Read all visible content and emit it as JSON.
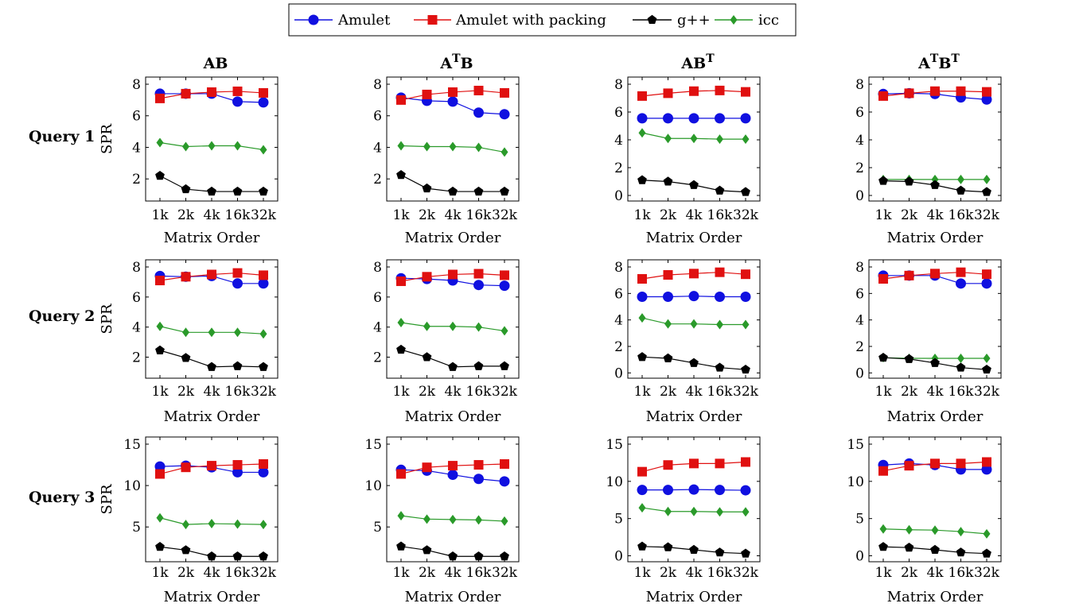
{
  "legend": {
    "items": [
      {
        "label": "Amulet",
        "color": "#1010e0",
        "marker": "circle"
      },
      {
        "label": "Amulet with packing",
        "color": "#e01010",
        "marker": "square"
      },
      {
        "label": "g++",
        "color": "#000000",
        "marker": "pentagon"
      },
      {
        "label": "icc",
        "color": "#2a9a2a",
        "marker": "diamond"
      }
    ]
  },
  "columns": [
    {
      "base": "AB",
      "parts": [
        {
          "t": "AB",
          "sup": false
        }
      ]
    },
    {
      "base": "ATB",
      "parts": [
        {
          "t": "A",
          "sup": false
        },
        {
          "t": "T",
          "sup": true
        },
        {
          "t": "B",
          "sup": false
        }
      ]
    },
    {
      "base": "ABT",
      "parts": [
        {
          "t": "AB",
          "sup": false
        },
        {
          "t": "T",
          "sup": true
        }
      ]
    },
    {
      "base": "ATBT",
      "parts": [
        {
          "t": "A",
          "sup": false
        },
        {
          "t": "T",
          "sup": true
        },
        {
          "t": "B",
          "sup": false
        },
        {
          "t": "T",
          "sup": true
        }
      ]
    }
  ],
  "rows": [
    "Query 1",
    "Query 2",
    "Query 3"
  ],
  "ylabel": "SPR",
  "xlabel": "Matrix Order",
  "chart_data": [
    {
      "type": "line",
      "query": "Query 1",
      "panel": "AB",
      "categories": [
        "1k",
        "2k",
        "4k",
        "16k",
        "32k"
      ],
      "ylim": [
        0.6,
        8
      ],
      "yticks": [
        2,
        4,
        6,
        8
      ],
      "series": [
        {
          "name": "Amulet",
          "values": [
            7.4,
            7.4,
            7.4,
            6.9,
            6.85
          ]
        },
        {
          "name": "Amulet with packing",
          "values": [
            7.1,
            7.4,
            7.5,
            7.55,
            7.45
          ]
        },
        {
          "name": "g++",
          "values": [
            2.2,
            1.35,
            1.2,
            1.2,
            1.2
          ]
        },
        {
          "name": "icc",
          "values": [
            4.3,
            4.05,
            4.1,
            4.1,
            3.85
          ]
        }
      ]
    },
    {
      "type": "line",
      "query": "Query 1",
      "panel": "ATB",
      "categories": [
        "1k",
        "2k",
        "4k",
        "16k",
        "32k"
      ],
      "ylim": [
        0.6,
        8
      ],
      "yticks": [
        2,
        4,
        6,
        8
      ],
      "series": [
        {
          "name": "Amulet",
          "values": [
            7.15,
            6.95,
            6.9,
            6.2,
            6.1
          ]
        },
        {
          "name": "Amulet with packing",
          "values": [
            7.0,
            7.35,
            7.5,
            7.6,
            7.45
          ]
        },
        {
          "name": "g++",
          "values": [
            2.25,
            1.4,
            1.2,
            1.2,
            1.2
          ]
        },
        {
          "name": "icc",
          "values": [
            4.1,
            4.05,
            4.05,
            4.0,
            3.7
          ]
        }
      ]
    },
    {
      "type": "line",
      "query": "Query 1",
      "panel": "ABT",
      "categories": [
        "1k",
        "2k",
        "4k",
        "16k",
        "32k"
      ],
      "ylim": [
        -0.4,
        8
      ],
      "yticks": [
        0,
        2,
        4,
        6,
        8
      ],
      "series": [
        {
          "name": "Amulet",
          "values": [
            5.55,
            5.55,
            5.55,
            5.55,
            5.55
          ]
        },
        {
          "name": "Amulet with packing",
          "values": [
            7.15,
            7.35,
            7.5,
            7.55,
            7.45
          ]
        },
        {
          "name": "g++",
          "values": [
            1.1,
            1.0,
            0.75,
            0.35,
            0.25
          ]
        },
        {
          "name": "icc",
          "values": [
            4.5,
            4.1,
            4.1,
            4.05,
            4.05
          ]
        }
      ]
    },
    {
      "type": "line",
      "query": "Query 1",
      "panel": "ATBT",
      "categories": [
        "1k",
        "2k",
        "4k",
        "16k",
        "32k"
      ],
      "ylim": [
        -0.4,
        8
      ],
      "yticks": [
        0,
        2,
        4,
        6,
        8
      ],
      "series": [
        {
          "name": "Amulet",
          "values": [
            7.3,
            7.35,
            7.3,
            7.05,
            6.9
          ]
        },
        {
          "name": "Amulet with packing",
          "values": [
            7.15,
            7.35,
            7.5,
            7.5,
            7.45
          ]
        },
        {
          "name": "g++",
          "values": [
            1.05,
            1.0,
            0.75,
            0.35,
            0.25
          ]
        },
        {
          "name": "icc",
          "values": [
            1.15,
            1.15,
            1.15,
            1.15,
            1.15
          ]
        }
      ]
    },
    {
      "type": "line",
      "query": "Query 2",
      "panel": "AB",
      "categories": [
        "1k",
        "2k",
        "4k",
        "16k",
        "32k"
      ],
      "ylim": [
        0.6,
        8
      ],
      "yticks": [
        2,
        4,
        6,
        8
      ],
      "series": [
        {
          "name": "Amulet",
          "values": [
            7.4,
            7.35,
            7.4,
            6.9,
            6.9
          ]
        },
        {
          "name": "Amulet with packing",
          "values": [
            7.1,
            7.35,
            7.5,
            7.6,
            7.45
          ]
        },
        {
          "name": "g++",
          "values": [
            2.45,
            1.95,
            1.35,
            1.4,
            1.35
          ]
        },
        {
          "name": "icc",
          "values": [
            4.05,
            3.65,
            3.65,
            3.65,
            3.55
          ]
        }
      ]
    },
    {
      "type": "line",
      "query": "Query 2",
      "panel": "ATB",
      "categories": [
        "1k",
        "2k",
        "4k",
        "16k",
        "32k"
      ],
      "ylim": [
        0.6,
        8
      ],
      "yticks": [
        2,
        4,
        6,
        8
      ],
      "series": [
        {
          "name": "Amulet",
          "values": [
            7.25,
            7.2,
            7.1,
            6.8,
            6.75
          ]
        },
        {
          "name": "Amulet with packing",
          "values": [
            7.05,
            7.35,
            7.5,
            7.55,
            7.45
          ]
        },
        {
          "name": "g++",
          "values": [
            2.5,
            2.0,
            1.35,
            1.4,
            1.4
          ]
        },
        {
          "name": "icc",
          "values": [
            4.3,
            4.05,
            4.05,
            4.0,
            3.75
          ]
        }
      ]
    },
    {
      "type": "line",
      "query": "Query 2",
      "panel": "ABT",
      "categories": [
        "1k",
        "2k",
        "4k",
        "16k",
        "32k"
      ],
      "ylim": [
        -0.4,
        8
      ],
      "yticks": [
        0,
        2,
        4,
        6,
        8
      ],
      "series": [
        {
          "name": "Amulet",
          "values": [
            5.75,
            5.75,
            5.8,
            5.75,
            5.75
          ]
        },
        {
          "name": "Amulet with packing",
          "values": [
            7.1,
            7.4,
            7.5,
            7.6,
            7.45
          ]
        },
        {
          "name": "g++",
          "values": [
            1.2,
            1.1,
            0.75,
            0.4,
            0.25
          ]
        },
        {
          "name": "icc",
          "values": [
            4.15,
            3.7,
            3.7,
            3.65,
            3.65
          ]
        }
      ]
    },
    {
      "type": "line",
      "query": "Query 2",
      "panel": "ATBT",
      "categories": [
        "1k",
        "2k",
        "4k",
        "16k",
        "32k"
      ],
      "ylim": [
        -0.4,
        8
      ],
      "yticks": [
        0,
        2,
        4,
        6,
        8
      ],
      "series": [
        {
          "name": "Amulet",
          "values": [
            7.35,
            7.35,
            7.35,
            6.75,
            6.75
          ]
        },
        {
          "name": "Amulet with packing",
          "values": [
            7.1,
            7.35,
            7.5,
            7.6,
            7.45
          ]
        },
        {
          "name": "g++",
          "values": [
            1.15,
            1.05,
            0.75,
            0.4,
            0.25
          ]
        },
        {
          "name": "icc",
          "values": [
            1.15,
            1.1,
            1.1,
            1.1,
            1.1
          ]
        }
      ]
    },
    {
      "type": "line",
      "query": "Query 3",
      "panel": "AB",
      "categories": [
        "1k",
        "2k",
        "4k",
        "16k",
        "32k"
      ],
      "ylim": [
        0.8,
        15
      ],
      "yticks": [
        5,
        10,
        15
      ],
      "series": [
        {
          "name": "Amulet",
          "values": [
            12.3,
            12.4,
            12.2,
            11.6,
            11.6
          ]
        },
        {
          "name": "Amulet with packing",
          "values": [
            11.4,
            12.2,
            12.4,
            12.5,
            12.6
          ]
        },
        {
          "name": "g++",
          "values": [
            2.6,
            2.2,
            1.45,
            1.45,
            1.45
          ]
        },
        {
          "name": "icc",
          "values": [
            6.1,
            5.3,
            5.4,
            5.35,
            5.3
          ]
        }
      ]
    },
    {
      "type": "line",
      "query": "Query 3",
      "panel": "ATB",
      "categories": [
        "1k",
        "2k",
        "4k",
        "16k",
        "32k"
      ],
      "ylim": [
        0.8,
        15
      ],
      "yticks": [
        5,
        10,
        15
      ],
      "series": [
        {
          "name": "Amulet",
          "values": [
            11.9,
            11.8,
            11.3,
            10.8,
            10.5
          ]
        },
        {
          "name": "Amulet with packing",
          "values": [
            11.4,
            12.2,
            12.4,
            12.5,
            12.6
          ]
        },
        {
          "name": "g++",
          "values": [
            2.65,
            2.2,
            1.45,
            1.45,
            1.45
          ]
        },
        {
          "name": "icc",
          "values": [
            6.35,
            5.95,
            5.9,
            5.85,
            5.7
          ]
        }
      ]
    },
    {
      "type": "line",
      "query": "Query 3",
      "panel": "ABT",
      "categories": [
        "1k",
        "2k",
        "4k",
        "16k",
        "32k"
      ],
      "ylim": [
        -0.8,
        15
      ],
      "yticks": [
        0,
        5,
        10,
        15
      ],
      "series": [
        {
          "name": "Amulet",
          "values": [
            8.85,
            8.85,
            8.9,
            8.85,
            8.8
          ]
        },
        {
          "name": "Amulet with packing",
          "values": [
            11.3,
            12.2,
            12.4,
            12.4,
            12.6
          ]
        },
        {
          "name": "g++",
          "values": [
            1.25,
            1.15,
            0.8,
            0.45,
            0.3
          ]
        },
        {
          "name": "icc",
          "values": [
            6.45,
            5.95,
            5.95,
            5.9,
            5.9
          ]
        }
      ]
    },
    {
      "type": "line",
      "query": "Query 3",
      "panel": "ATBT",
      "categories": [
        "1k",
        "2k",
        "4k",
        "16k",
        "32k"
      ],
      "ylim": [
        -0.8,
        15
      ],
      "yticks": [
        0,
        5,
        10,
        15
      ],
      "series": [
        {
          "name": "Amulet",
          "values": [
            12.2,
            12.4,
            12.2,
            11.6,
            11.6
          ]
        },
        {
          "name": "Amulet with packing",
          "values": [
            11.4,
            12.1,
            12.4,
            12.4,
            12.6
          ]
        },
        {
          "name": "g++",
          "values": [
            1.2,
            1.1,
            0.8,
            0.45,
            0.3
          ]
        },
        {
          "name": "icc",
          "values": [
            3.6,
            3.5,
            3.45,
            3.25,
            2.95
          ]
        }
      ]
    }
  ]
}
